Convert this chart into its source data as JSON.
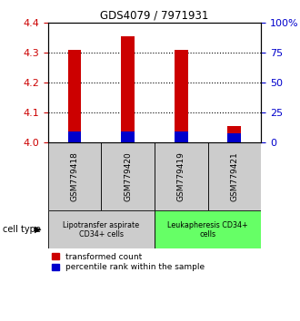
{
  "title": "GDS4079 / 7971931",
  "samples": [
    "GSM779418",
    "GSM779420",
    "GSM779419",
    "GSM779421"
  ],
  "red_values": [
    4.31,
    4.355,
    4.31,
    4.055
  ],
  "blue_values": [
    4.035,
    4.035,
    4.035,
    4.03
  ],
  "ylim": [
    4.0,
    4.4
  ],
  "yticks_left": [
    4.0,
    4.1,
    4.2,
    4.3,
    4.4
  ],
  "yticks_right": [
    0,
    25,
    50,
    75,
    100
  ],
  "ytick_labels_right": [
    "0",
    "25",
    "50",
    "75",
    "100%"
  ],
  "bar_width": 0.25,
  "red_color": "#cc0000",
  "blue_color": "#0000cc",
  "cell_types": [
    {
      "label": "Lipotransfer aspirate\nCD34+ cells",
      "start": 0,
      "end": 2,
      "color": "#cccccc"
    },
    {
      "label": "Leukapheresis CD34+\ncells",
      "start": 2,
      "end": 4,
      "color": "#66ff66"
    }
  ],
  "cell_type_label": "cell type",
  "legend_red": "transformed count",
  "legend_blue": "percentile rank within the sample",
  "left_tick_color": "#cc0000",
  "right_tick_color": "#0000cc",
  "sample_box_color": "#cccccc"
}
